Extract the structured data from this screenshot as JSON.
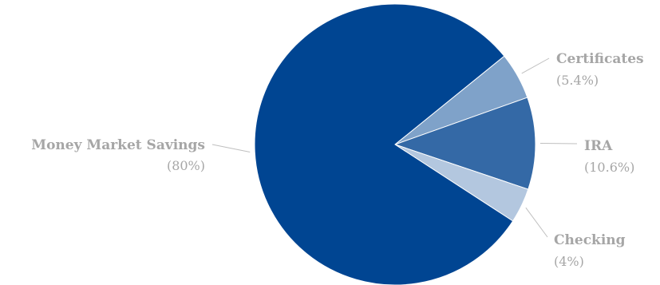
{
  "chart_data": {
    "type": "pie",
    "title": "",
    "slices": [
      {
        "label": "Certificates",
        "pct_label": "(5.4%)",
        "value": 5.4,
        "color": "#7fa2c9"
      },
      {
        "label": "IRA",
        "pct_label": "(10.6%)",
        "value": 10.6,
        "color": "#3469a6"
      },
      {
        "label": "Checking",
        "pct_label": "(4%)",
        "value": 4,
        "color": "#b3c7df"
      },
      {
        "label": "Money Market Savings",
        "pct_label": "(80%)",
        "value": 80,
        "color": "#004592"
      }
    ],
    "label_color": "#a6a6a6",
    "edge_color": "#ffffff"
  }
}
